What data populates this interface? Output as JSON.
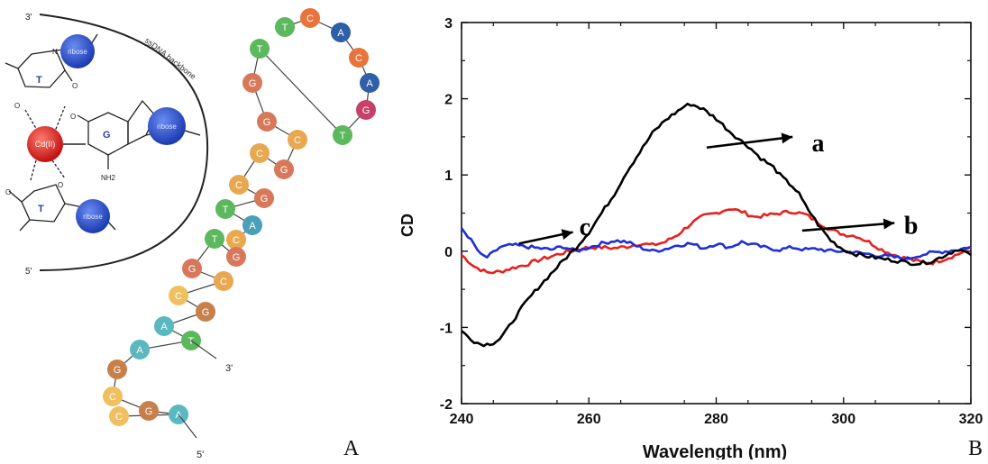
{
  "panel_a": {
    "panel_label": "A",
    "backbone_label": "ssDNA backbone",
    "end_top": "3'",
    "end_bottom": "5'",
    "metal_label": "Cd(II)",
    "ribose_label": "ribose",
    "base_t_label": "T",
    "base_g_label": "G",
    "nh2_label": "NH2",
    "o_label": "O",
    "n_label": "N",
    "strand_3prime": "3'",
    "strand_5prime": "5'",
    "colors": {
      "G": "#c8406a",
      "C": "#e8743c",
      "T": "#5cb85c",
      "A": "#2e5fa8"
    },
    "stem_colors": {
      "G": "#d8785a",
      "C": "#e8a850",
      "T": "#5cb85c",
      "A": "#4aa0b8"
    },
    "tail_colors": {
      "G": "#c8804a",
      "C": "#f0c060",
      "T": "#5cb85c",
      "A": "#5ab8c0"
    },
    "nucleotides": [
      "T",
      "C",
      "A",
      "C",
      "A",
      "G",
      "T",
      "T",
      "G",
      "G",
      "C",
      "G",
      "C",
      "C",
      "G",
      "T",
      "A",
      "C",
      "G",
      "T",
      "G",
      "C",
      "C",
      "G",
      "A",
      "T",
      "A",
      "G",
      "C",
      "G",
      "A",
      "C",
      "T",
      "C"
    ]
  },
  "panel_b": {
    "panel_label": "B"
  },
  "chart_data": {
    "type": "line",
    "xlabel": "Wavelength (nm)",
    "ylabel": "CD",
    "xlim": [
      240,
      320
    ],
    "ylim": [
      -2,
      3
    ],
    "xticks": [
      240,
      260,
      280,
      300,
      320
    ],
    "yticks": [
      -2,
      -1,
      0,
      1,
      2,
      3
    ],
    "grid": false,
    "series": [
      {
        "name": "a",
        "color": "#000000",
        "x": [
          240,
          241,
          242,
          243,
          244,
          245,
          246,
          247,
          248,
          249,
          250,
          252,
          254,
          256,
          258,
          260,
          262,
          264,
          266,
          268,
          270,
          272,
          274,
          275,
          276,
          277,
          278,
          279,
          280,
          282,
          284,
          285,
          286,
          287,
          288,
          289,
          290,
          291,
          292,
          293,
          294,
          295,
          296,
          298,
          300,
          302,
          304,
          306,
          308,
          310,
          312,
          314,
          316,
          318,
          320
        ],
        "y": [
          -1.05,
          -1.12,
          -1.18,
          -1.22,
          -1.22,
          -1.2,
          -1.15,
          -1.05,
          -0.92,
          -0.8,
          -0.68,
          -0.48,
          -0.3,
          -0.12,
          0.05,
          0.25,
          0.5,
          0.75,
          1.05,
          1.3,
          1.55,
          1.72,
          1.84,
          1.9,
          1.93,
          1.9,
          1.86,
          1.8,
          1.74,
          1.58,
          1.44,
          1.38,
          1.3,
          1.22,
          1.16,
          1.1,
          1.0,
          0.92,
          0.85,
          0.75,
          0.6,
          0.48,
          0.35,
          0.14,
          0.02,
          -0.04,
          -0.07,
          -0.1,
          -0.12,
          -0.15,
          -0.16,
          -0.13,
          -0.05,
          0.03,
          -0.05
        ]
      },
      {
        "name": "b",
        "color": "#e8201e",
        "x": [
          240,
          242,
          244,
          246,
          248,
          250,
          252,
          254,
          256,
          258,
          260,
          262,
          264,
          266,
          268,
          270,
          272,
          274,
          276,
          278,
          280,
          282,
          284,
          286,
          288,
          290,
          292,
          294,
          296,
          298,
          300,
          302,
          304,
          306,
          308,
          310,
          312,
          314,
          316,
          318,
          320
        ],
        "y": [
          -0.05,
          -0.2,
          -0.28,
          -0.27,
          -0.22,
          -0.18,
          -0.12,
          -0.07,
          -0.02,
          0.02,
          0.05,
          0.05,
          0.04,
          0.06,
          0.1,
          0.08,
          0.12,
          0.22,
          0.36,
          0.46,
          0.5,
          0.56,
          0.52,
          0.45,
          0.47,
          0.5,
          0.52,
          0.48,
          0.38,
          0.28,
          0.22,
          0.2,
          0.12,
          0.02,
          -0.05,
          -0.1,
          -0.14,
          -0.15,
          -0.1,
          -0.04,
          0.05
        ]
      },
      {
        "name": "c",
        "color": "#1f2fd8",
        "x": [
          240,
          241,
          242,
          243,
          244,
          245,
          246,
          248,
          250,
          252,
          254,
          256,
          258,
          260,
          262,
          264,
          266,
          268,
          270,
          272,
          274,
          276,
          278,
          280,
          282,
          284,
          286,
          288,
          290,
          292,
          294,
          296,
          298,
          300,
          302,
          304,
          306,
          308,
          310,
          312,
          314,
          316,
          318,
          320
        ],
        "y": [
          0.3,
          0.2,
          0.08,
          -0.05,
          -0.08,
          -0.02,
          0.05,
          0.08,
          0.06,
          0.04,
          0.02,
          0.06,
          0.0,
          0.05,
          0.1,
          0.14,
          0.12,
          0.05,
          0.0,
          0.03,
          0.08,
          0.1,
          0.04,
          0.1,
          0.05,
          0.12,
          0.08,
          0.04,
          0.02,
          0.05,
          0.02,
          0.03,
          0.0,
          0.0,
          -0.02,
          -0.04,
          -0.06,
          -0.08,
          -0.1,
          -0.05,
          -0.02,
          0.0,
          0.02,
          0.06
        ]
      }
    ]
  }
}
